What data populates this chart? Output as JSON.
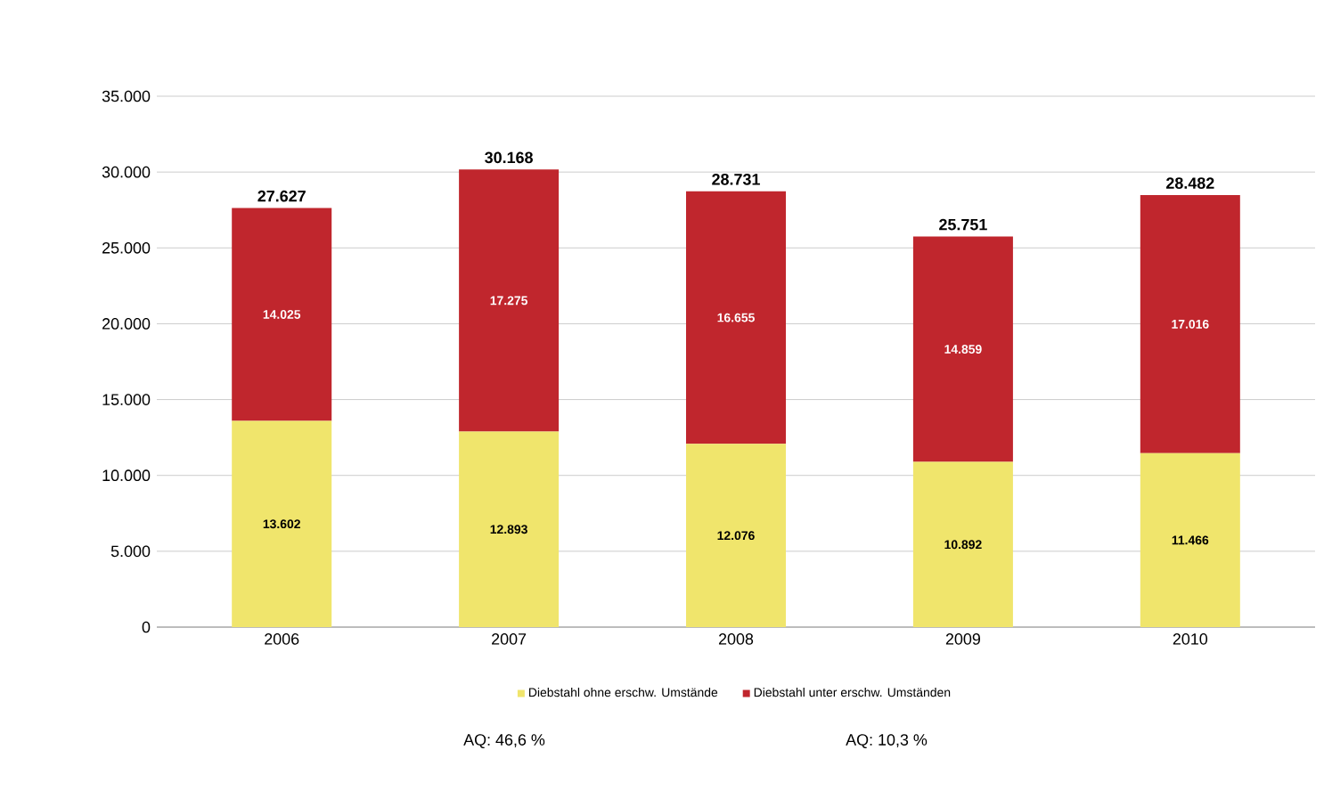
{
  "chart_data": {
    "type": "bar",
    "stacked": true,
    "categories": [
      "2006",
      "2007",
      "2008",
      "2009",
      "2010"
    ],
    "series": [
      {
        "name": "Diebstahl ohne erschw. Umstände",
        "color": "#f0e56c",
        "values": [
          13602,
          12893,
          12076,
          10892,
          11466
        ],
        "value_labels": [
          "13.602",
          "12.893",
          "12.076",
          "10.892",
          "11.466"
        ]
      },
      {
        "name": "Diebstahl unter erschw. Umständen",
        "color": "#c0262d",
        "values": [
          14025,
          17275,
          16655,
          14859,
          17016
        ],
        "value_labels": [
          "14.025",
          "17.275",
          "16.655",
          "14.859",
          "17.016"
        ]
      }
    ],
    "totals": [
      "27.627",
      "30.168",
      "28.731",
      "25.751",
      "28.482"
    ],
    "ylim": [
      0,
      35000
    ],
    "yticks": [
      {
        "value": 0,
        "label": "0"
      },
      {
        "value": 5000,
        "label": "5.000"
      },
      {
        "value": 10000,
        "label": "10.000"
      },
      {
        "value": 15000,
        "label": "15.000"
      },
      {
        "value": 20000,
        "label": "20.000"
      },
      {
        "value": 25000,
        "label": "25.000"
      },
      {
        "value": 30000,
        "label": "30.000"
      },
      {
        "value": 35000,
        "label": "35.000"
      }
    ],
    "grid": "y",
    "legend": "bottom",
    "annotations": [
      "AQ: 46,6 %",
      "AQ: 10,3 %"
    ]
  }
}
